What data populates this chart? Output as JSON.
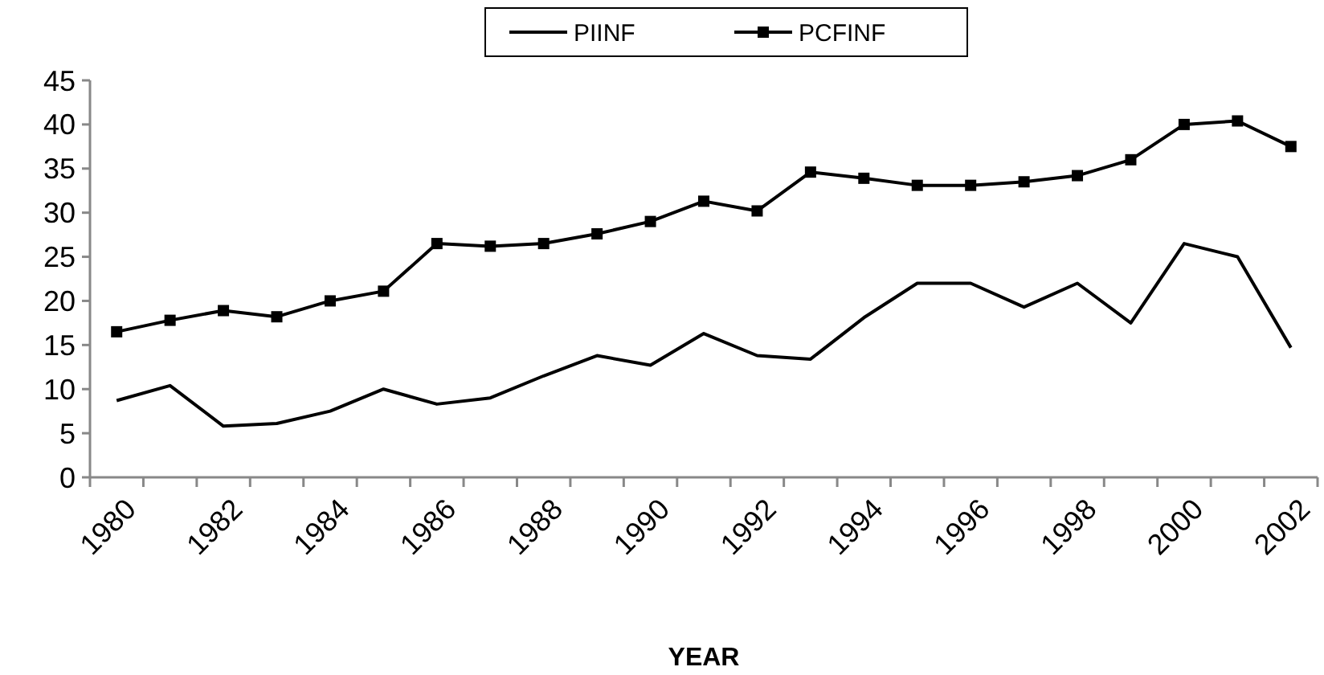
{
  "chart_data": {
    "type": "line",
    "xlabel": "YEAR",
    "categories": [
      "1980",
      null,
      "1982",
      null,
      "1984",
      null,
      "1986",
      null,
      "1988",
      null,
      "1990",
      null,
      "1992",
      null,
      "1994",
      null,
      "1996",
      null,
      "1998",
      null,
      "2000",
      null,
      "2002"
    ],
    "series": [
      {
        "name": "PIINF",
        "color": "#000000",
        "marker": "none",
        "values": [
          8.7,
          10.4,
          5.8,
          6.1,
          7.5,
          10,
          8.3,
          9,
          11.5,
          13.8,
          12.7,
          16.3,
          13.8,
          13.4,
          18.1,
          22,
          22,
          19.3,
          22,
          17.5,
          26.5,
          25,
          14.7
        ]
      },
      {
        "name": "PCFINF",
        "color": "#000000",
        "marker": "square",
        "values": [
          16.5,
          17.8,
          18.9,
          18.2,
          20,
          21.1,
          26.5,
          26.2,
          26.5,
          27.6,
          29,
          31.3,
          30.2,
          34.6,
          33.9,
          33.1,
          33.1,
          33.5,
          34.2,
          36,
          40,
          40.4,
          37.5
        ]
      }
    ],
    "ylim": [
      0,
      45
    ],
    "yticks": [
      0,
      5,
      10,
      15,
      20,
      25,
      30,
      35,
      40,
      45
    ],
    "grid": false,
    "legend": "top",
    "line_style": "solid"
  }
}
